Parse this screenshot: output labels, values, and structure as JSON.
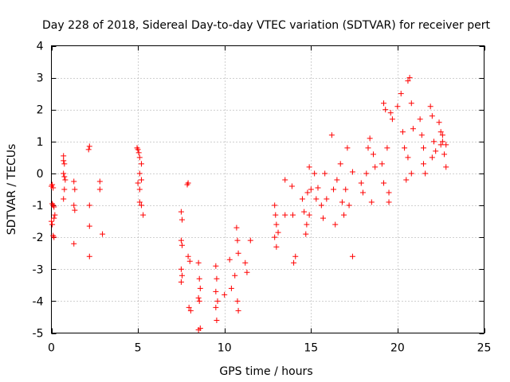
{
  "chart_data": {
    "type": "scatter",
    "title": "Day 228 of 2018, Sidereal Day-to-day VTEC variation (SDTVAR) for receiver pert",
    "xlabel": "GPS time / hours",
    "ylabel": "SDTVAR / TECUs",
    "xlim": [
      0,
      25
    ],
    "ylim": [
      -5,
      4
    ],
    "xticks": [
      0,
      5,
      10,
      15,
      20,
      25
    ],
    "yticks": [
      -5,
      -4,
      -3,
      -2,
      -1,
      0,
      1,
      2,
      3,
      4
    ],
    "xtick_labels": [
      "0",
      "5",
      "10",
      "15",
      "20",
      "25"
    ],
    "ytick_labels": [
      "-5",
      "-4",
      "-3",
      "-2",
      "-1",
      "0",
      "1",
      "2",
      "3",
      "4"
    ],
    "grid": true,
    "marker": "+",
    "color": "#ff0000",
    "series": [
      {
        "name": "SDTVAR",
        "points": [
          [
            0.0,
            -0.4
          ],
          [
            0.05,
            -0.35
          ],
          [
            0.1,
            -0.45
          ],
          [
            0.05,
            -0.95
          ],
          [
            0.1,
            -1.0
          ],
          [
            0.15,
            -1.05
          ],
          [
            0.0,
            -1.5
          ],
          [
            0.05,
            -1.6
          ],
          [
            0.1,
            -1.95
          ],
          [
            0.15,
            -2.0
          ],
          [
            0.2,
            -1.3
          ],
          [
            0.15,
            -1.4
          ],
          [
            0.7,
            0.55
          ],
          [
            0.7,
            0.4
          ],
          [
            0.75,
            0.3
          ],
          [
            0.7,
            0.0
          ],
          [
            0.8,
            -0.2
          ],
          [
            0.75,
            -0.5
          ],
          [
            0.7,
            -0.8
          ],
          [
            0.75,
            -0.1
          ],
          [
            1.3,
            -0.25
          ],
          [
            1.35,
            -0.5
          ],
          [
            1.3,
            -1.0
          ],
          [
            1.35,
            -1.15
          ],
          [
            1.3,
            -2.2
          ],
          [
            2.2,
            0.85
          ],
          [
            2.15,
            0.75
          ],
          [
            2.2,
            -1.0
          ],
          [
            2.2,
            -1.65
          ],
          [
            2.2,
            -2.6
          ],
          [
            2.8,
            -0.25
          ],
          [
            2.8,
            -0.5
          ],
          [
            2.95,
            -1.9
          ],
          [
            4.95,
            0.8
          ],
          [
            5.0,
            0.75
          ],
          [
            5.05,
            0.65
          ],
          [
            5.1,
            0.5
          ],
          [
            5.2,
            0.3
          ],
          [
            5.1,
            0.0
          ],
          [
            5.0,
            -0.3
          ],
          [
            5.1,
            -0.5
          ],
          [
            5.2,
            -0.2
          ],
          [
            5.1,
            -0.9
          ],
          [
            5.2,
            -1.0
          ],
          [
            5.3,
            -1.3
          ],
          [
            7.5,
            -1.2
          ],
          [
            7.55,
            -1.45
          ],
          [
            7.5,
            -2.1
          ],
          [
            7.55,
            -2.25
          ],
          [
            7.5,
            -3.0
          ],
          [
            7.55,
            -3.2
          ],
          [
            7.5,
            -3.4
          ],
          [
            7.9,
            -0.3
          ],
          [
            7.85,
            -0.35
          ],
          [
            7.9,
            -2.6
          ],
          [
            8.0,
            -2.75
          ],
          [
            7.95,
            -4.2
          ],
          [
            8.05,
            -4.3
          ],
          [
            8.5,
            -2.8
          ],
          [
            8.55,
            -3.3
          ],
          [
            8.6,
            -3.6
          ],
          [
            8.5,
            -3.9
          ],
          [
            8.55,
            -4.0
          ],
          [
            8.6,
            -4.85
          ],
          [
            8.5,
            -4.9
          ],
          [
            9.5,
            -2.9
          ],
          [
            9.55,
            -3.3
          ],
          [
            9.5,
            -3.7
          ],
          [
            9.6,
            -4.0
          ],
          [
            9.5,
            -4.2
          ],
          [
            9.55,
            -4.6
          ],
          [
            10.0,
            -3.8
          ],
          [
            10.3,
            -2.7
          ],
          [
            10.4,
            -3.6
          ],
          [
            10.6,
            -3.2
          ],
          [
            10.7,
            -1.7
          ],
          [
            10.75,
            -2.1
          ],
          [
            10.8,
            -2.5
          ],
          [
            10.75,
            -4.0
          ],
          [
            10.8,
            -4.3
          ],
          [
            11.2,
            -2.8
          ],
          [
            11.3,
            -3.1
          ],
          [
            11.5,
            -2.1
          ],
          [
            12.9,
            -1.0
          ],
          [
            12.95,
            -1.3
          ],
          [
            13.0,
            -1.6
          ],
          [
            12.9,
            -2.0
          ],
          [
            13.0,
            -2.3
          ],
          [
            13.1,
            -1.85
          ],
          [
            13.5,
            -1.3
          ],
          [
            13.5,
            -0.2
          ],
          [
            13.9,
            -0.4
          ],
          [
            13.95,
            -1.3
          ],
          [
            14.0,
            -2.8
          ],
          [
            14.1,
            -2.6
          ],
          [
            14.5,
            -0.8
          ],
          [
            14.6,
            -1.2
          ],
          [
            14.7,
            -1.9
          ],
          [
            14.75,
            -1.6
          ],
          [
            14.8,
            -0.6
          ],
          [
            14.9,
            0.2
          ],
          [
            14.9,
            -1.3
          ],
          [
            15.0,
            -0.5
          ],
          [
            15.2,
            0.0
          ],
          [
            15.3,
            -0.8
          ],
          [
            15.4,
            -0.45
          ],
          [
            15.6,
            -1.0
          ],
          [
            15.7,
            -1.4
          ],
          [
            15.8,
            0.0
          ],
          [
            15.9,
            -0.8
          ],
          [
            16.2,
            1.2
          ],
          [
            16.3,
            -0.5
          ],
          [
            16.4,
            -1.6
          ],
          [
            16.5,
            -0.2
          ],
          [
            16.7,
            0.3
          ],
          [
            16.8,
            -0.9
          ],
          [
            16.9,
            -1.3
          ],
          [
            17.0,
            -0.5
          ],
          [
            17.1,
            0.8
          ],
          [
            17.2,
            -1.0
          ],
          [
            17.4,
            0.05
          ],
          [
            17.4,
            -2.6
          ],
          [
            17.9,
            -0.3
          ],
          [
            18.0,
            -0.6
          ],
          [
            18.2,
            0.0
          ],
          [
            18.3,
            0.8
          ],
          [
            18.4,
            1.1
          ],
          [
            18.5,
            -0.9
          ],
          [
            18.6,
            0.6
          ],
          [
            18.7,
            0.2
          ],
          [
            19.2,
            2.2
          ],
          [
            19.3,
            2.0
          ],
          [
            19.1,
            0.3
          ],
          [
            19.2,
            -0.3
          ],
          [
            19.4,
            0.8
          ],
          [
            19.5,
            -0.6
          ],
          [
            19.6,
            1.9
          ],
          [
            19.7,
            1.7
          ],
          [
            19.5,
            -0.9
          ],
          [
            20.0,
            2.1
          ],
          [
            20.2,
            2.5
          ],
          [
            20.3,
            1.3
          ],
          [
            20.4,
            0.8
          ],
          [
            20.5,
            -0.2
          ],
          [
            20.6,
            2.9
          ],
          [
            20.7,
            3.0
          ],
          [
            20.8,
            2.2
          ],
          [
            20.9,
            1.4
          ],
          [
            20.6,
            0.5
          ],
          [
            20.8,
            0.0
          ],
          [
            21.3,
            1.7
          ],
          [
            21.4,
            1.2
          ],
          [
            21.5,
            0.3
          ],
          [
            21.6,
            0.0
          ],
          [
            21.5,
            0.8
          ],
          [
            21.9,
            2.1
          ],
          [
            22.0,
            1.8
          ],
          [
            22.1,
            1.0
          ],
          [
            22.0,
            0.5
          ],
          [
            22.2,
            0.7
          ],
          [
            22.4,
            1.6
          ],
          [
            22.5,
            1.3
          ],
          [
            22.6,
            1.0
          ],
          [
            22.7,
            0.6
          ],
          [
            22.8,
            0.2
          ],
          [
            22.5,
            0.9
          ],
          [
            22.6,
            1.2
          ],
          [
            22.8,
            0.9
          ]
        ]
      }
    ]
  }
}
